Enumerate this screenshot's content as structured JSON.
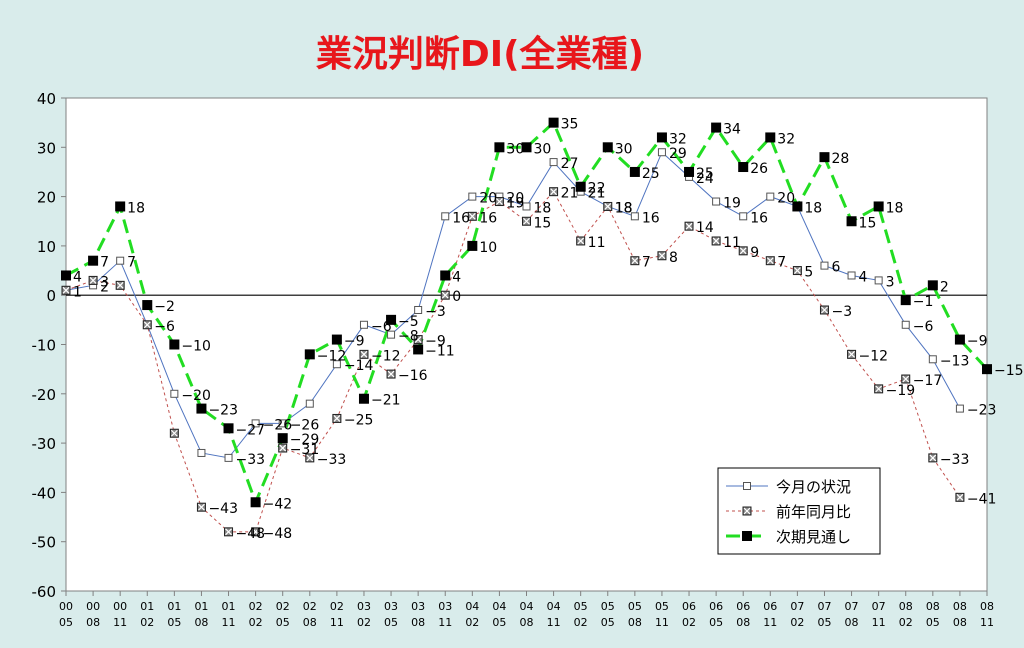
{
  "chart_data": {
    "type": "line",
    "title": "業況判断DI(全業種)",
    "ylim": [
      -60,
      40
    ],
    "yticks": [
      40,
      30,
      20,
      10,
      0,
      -10,
      -20,
      -30,
      -40,
      -50,
      -60
    ],
    "categories": [
      {
        "year": "00",
        "month": "05"
      },
      {
        "year": "00",
        "month": "08"
      },
      {
        "year": "00",
        "month": "11"
      },
      {
        "year": "01",
        "month": "02"
      },
      {
        "year": "01",
        "month": "05"
      },
      {
        "year": "01",
        "month": "08"
      },
      {
        "year": "01",
        "month": "11"
      },
      {
        "year": "02",
        "month": "02"
      },
      {
        "year": "02",
        "month": "05"
      },
      {
        "year": "02",
        "month": "08"
      },
      {
        "year": "02",
        "month": "11"
      },
      {
        "year": "03",
        "month": "02"
      },
      {
        "year": "03",
        "month": "05"
      },
      {
        "year": "03",
        "month": "08"
      },
      {
        "year": "03",
        "month": "11"
      },
      {
        "year": "04",
        "month": "02"
      },
      {
        "year": "04",
        "month": "05"
      },
      {
        "year": "04",
        "month": "08"
      },
      {
        "year": "04",
        "month": "11"
      },
      {
        "year": "05",
        "month": "02"
      },
      {
        "year": "05",
        "month": "05"
      },
      {
        "year": "05",
        "month": "08"
      },
      {
        "year": "05",
        "month": "11"
      },
      {
        "year": "06",
        "month": "02"
      },
      {
        "year": "06",
        "month": "05"
      },
      {
        "year": "06",
        "month": "08"
      },
      {
        "year": "06",
        "month": "11"
      },
      {
        "year": "07",
        "month": "02"
      },
      {
        "year": "07",
        "month": "05"
      },
      {
        "year": "07",
        "month": "08"
      },
      {
        "year": "07",
        "month": "11"
      },
      {
        "year": "08",
        "month": "02"
      },
      {
        "year": "08",
        "month": "05"
      },
      {
        "year": "08",
        "month": "08"
      },
      {
        "year": "08",
        "month": "11"
      }
    ],
    "series": [
      {
        "name": "今月の状況",
        "color": "#4f74c0",
        "style": "solid",
        "marker": "hollow-square",
        "values": [
          1,
          2,
          7,
          -6,
          -20,
          -32,
          -33,
          -26,
          -26,
          -22,
          -14,
          -6,
          -8,
          -3,
          16,
          20,
          20,
          18,
          27,
          21,
          18,
          16,
          29,
          24,
          19,
          16,
          20,
          18,
          6,
          4,
          3,
          -6,
          -13,
          -23,
          null
        ]
      },
      {
        "name": "前年同月比",
        "color": "#c0504d",
        "style": "dotted",
        "marker": "x-square",
        "values": [
          1,
          3,
          2,
          -6,
          -28,
          -43,
          -48,
          -48,
          -31,
          -33,
          -25,
          -12,
          -16,
          -9,
          0,
          16,
          19,
          15,
          21,
          11,
          18,
          7,
          8,
          14,
          11,
          9,
          7,
          5,
          -3,
          -12,
          -19,
          -17,
          -33,
          -41,
          null
        ]
      },
      {
        "name": "次期見通し",
        "color": "#22dd22",
        "style": "dashed",
        "marker": "filled-square",
        "values": [
          4,
          7,
          18,
          -2,
          -10,
          -23,
          -27,
          -42,
          -29,
          -12,
          -9,
          -21,
          -5,
          -11,
          4,
          10,
          30,
          30,
          35,
          22,
          30,
          25,
          32,
          25,
          34,
          26,
          32,
          18,
          28,
          15,
          18,
          -1,
          2,
          -9,
          -15
        ]
      }
    ],
    "labels": [
      {
        "series": 0,
        "index": 0,
        "text": "1"
      },
      {
        "series": 0,
        "index": 1,
        "text": "2"
      },
      {
        "series": 0,
        "index": 2,
        "text": "7"
      },
      {
        "series": 0,
        "index": 4,
        "text": "−20"
      },
      {
        "series": 0,
        "index": 6,
        "text": "−33"
      },
      {
        "series": 0,
        "index": 7,
        "text": "−26"
      },
      {
        "series": 0,
        "index": 8,
        "text": "−26"
      },
      {
        "series": 0,
        "index": 10,
        "text": "−14"
      },
      {
        "series": 0,
        "index": 11,
        "text": "−6"
      },
      {
        "series": 0,
        "index": 12,
        "text": "−8"
      },
      {
        "series": 0,
        "index": 13,
        "text": "−3"
      },
      {
        "series": 0,
        "index": 14,
        "text": "16"
      },
      {
        "series": 0,
        "index": 15,
        "text": "20"
      },
      {
        "series": 0,
        "index": 16,
        "text": "20"
      },
      {
        "series": 0,
        "index": 17,
        "text": "18"
      },
      {
        "series": 0,
        "index": 18,
        "text": "27"
      },
      {
        "series": 0,
        "index": 19,
        "text": "21"
      },
      {
        "series": 0,
        "index": 20,
        "text": "18"
      },
      {
        "series": 0,
        "index": 21,
        "text": "16"
      },
      {
        "series": 0,
        "index": 22,
        "text": "29"
      },
      {
        "series": 0,
        "index": 23,
        "text": "24"
      },
      {
        "series": 0,
        "index": 24,
        "text": "19"
      },
      {
        "series": 0,
        "index": 25,
        "text": "16"
      },
      {
        "series": 0,
        "index": 26,
        "text": "20"
      },
      {
        "series": 0,
        "index": 28,
        "text": "6"
      },
      {
        "series": 0,
        "index": 29,
        "text": "4"
      },
      {
        "series": 0,
        "index": 30,
        "text": "3"
      },
      {
        "series": 0,
        "index": 31,
        "text": "−6"
      },
      {
        "series": 0,
        "index": 32,
        "text": "−13"
      },
      {
        "series": 0,
        "index": 33,
        "text": "−23"
      },
      {
        "series": 1,
        "index": 1,
        "text": "3"
      },
      {
        "series": 1,
        "index": 3,
        "text": "−6"
      },
      {
        "series": 1,
        "index": 5,
        "text": "−43"
      },
      {
        "series": 1,
        "index": 6,
        "text": "−48"
      },
      {
        "series": 1,
        "index": 7,
        "text": "−48"
      },
      {
        "series": 1,
        "index": 8,
        "text": "−31"
      },
      {
        "series": 1,
        "index": 9,
        "text": "−33"
      },
      {
        "series": 1,
        "index": 10,
        "text": "−25"
      },
      {
        "series": 1,
        "index": 11,
        "text": "−12"
      },
      {
        "series": 1,
        "index": 12,
        "text": "−16"
      },
      {
        "series": 1,
        "index": 13,
        "text": "−9"
      },
      {
        "series": 1,
        "index": 14,
        "text": "0"
      },
      {
        "series": 1,
        "index": 15,
        "text": "16"
      },
      {
        "series": 1,
        "index": 16,
        "text": "19"
      },
      {
        "series": 1,
        "index": 17,
        "text": "15"
      },
      {
        "series": 1,
        "index": 18,
        "text": "21"
      },
      {
        "series": 1,
        "index": 19,
        "text": "11"
      },
      {
        "series": 1,
        "index": 20,
        "text": "18"
      },
      {
        "series": 1,
        "index": 21,
        "text": "7"
      },
      {
        "series": 1,
        "index": 22,
        "text": "8"
      },
      {
        "series": 1,
        "index": 23,
        "text": "14"
      },
      {
        "series": 1,
        "index": 24,
        "text": "11"
      },
      {
        "series": 1,
        "index": 25,
        "text": "9"
      },
      {
        "series": 1,
        "index": 26,
        "text": "7"
      },
      {
        "series": 1,
        "index": 27,
        "text": "5"
      },
      {
        "series": 1,
        "index": 28,
        "text": "−3"
      },
      {
        "series": 1,
        "index": 29,
        "text": "−12"
      },
      {
        "series": 1,
        "index": 30,
        "text": "−19"
      },
      {
        "series": 1,
        "index": 31,
        "text": "−17"
      },
      {
        "series": 1,
        "index": 32,
        "text": "−33"
      },
      {
        "series": 1,
        "index": 33,
        "text": "−41"
      },
      {
        "series": 2,
        "index": 0,
        "text": "4"
      },
      {
        "series": 2,
        "index": 1,
        "text": "7"
      },
      {
        "series": 2,
        "index": 2,
        "text": "18"
      },
      {
        "series": 2,
        "index": 3,
        "text": "−2"
      },
      {
        "series": 2,
        "index": 4,
        "text": "−10"
      },
      {
        "series": 2,
        "index": 5,
        "text": "−23"
      },
      {
        "series": 2,
        "index": 6,
        "text": "−27"
      },
      {
        "series": 2,
        "index": 7,
        "text": "−42"
      },
      {
        "series": 2,
        "index": 8,
        "text": "−29"
      },
      {
        "series": 2,
        "index": 9,
        "text": "−12"
      },
      {
        "series": 2,
        "index": 10,
        "text": "−9"
      },
      {
        "series": 2,
        "index": 11,
        "text": "−21"
      },
      {
        "series": 2,
        "index": 12,
        "text": "−5"
      },
      {
        "series": 2,
        "index": 13,
        "text": "−11"
      },
      {
        "series": 2,
        "index": 14,
        "text": "4"
      },
      {
        "series": 2,
        "index": 15,
        "text": "10"
      },
      {
        "series": 2,
        "index": 16,
        "text": "30"
      },
      {
        "series": 2,
        "index": 17,
        "text": "30"
      },
      {
        "series": 2,
        "index": 18,
        "text": "35"
      },
      {
        "series": 2,
        "index": 19,
        "text": "22"
      },
      {
        "series": 2,
        "index": 20,
        "text": "30"
      },
      {
        "series": 2,
        "index": 21,
        "text": "25"
      },
      {
        "series": 2,
        "index": 22,
        "text": "32"
      },
      {
        "series": 2,
        "index": 23,
        "text": "25"
      },
      {
        "series": 2,
        "index": 24,
        "text": "34"
      },
      {
        "series": 2,
        "index": 25,
        "text": "26"
      },
      {
        "series": 2,
        "index": 26,
        "text": "32"
      },
      {
        "series": 2,
        "index": 27,
        "text": "18"
      },
      {
        "series": 2,
        "index": 28,
        "text": "28"
      },
      {
        "series": 2,
        "index": 29,
        "text": "15"
      },
      {
        "series": 2,
        "index": 30,
        "text": "18"
      },
      {
        "series": 2,
        "index": 31,
        "text": "−1"
      },
      {
        "series": 2,
        "index": 32,
        "text": "2"
      },
      {
        "series": 2,
        "index": 33,
        "text": "−9"
      },
      {
        "series": 2,
        "index": 34,
        "text": "−15"
      }
    ],
    "legend": {
      "placement": "bottom-right",
      "items": [
        "今月の状況",
        "前年同月比",
        "次期見通し"
      ]
    },
    "title_color": "#e8161b",
    "zero_line_color": "#000000",
    "plot_background": "#ffffff"
  }
}
